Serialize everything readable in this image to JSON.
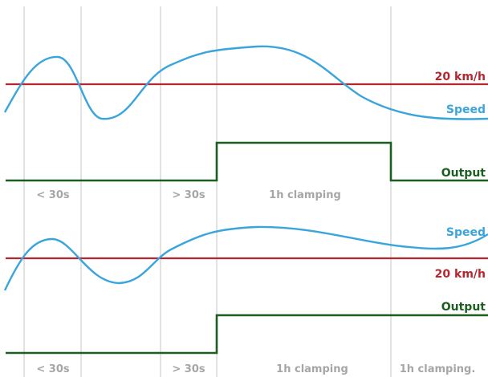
{
  "colors": {
    "threshold": "#b5262e",
    "speed": "#3aa5dc",
    "output": "#1b5e20",
    "interval_text": "#a6a6a6",
    "grid": "#c4c4c4"
  },
  "top_panel": {
    "threshold_label": "20 km/h",
    "speed_label": "Speed",
    "output_label": "Output",
    "intervals": [
      "< 30s",
      "> 30s",
      "1h clamping"
    ]
  },
  "bottom_panel": {
    "speed_label": "Speed",
    "threshold_label": "20 km/h",
    "output_label": "Output",
    "intervals": [
      "< 30s",
      "> 30s",
      "1h clamping",
      "1h clamping."
    ]
  }
}
